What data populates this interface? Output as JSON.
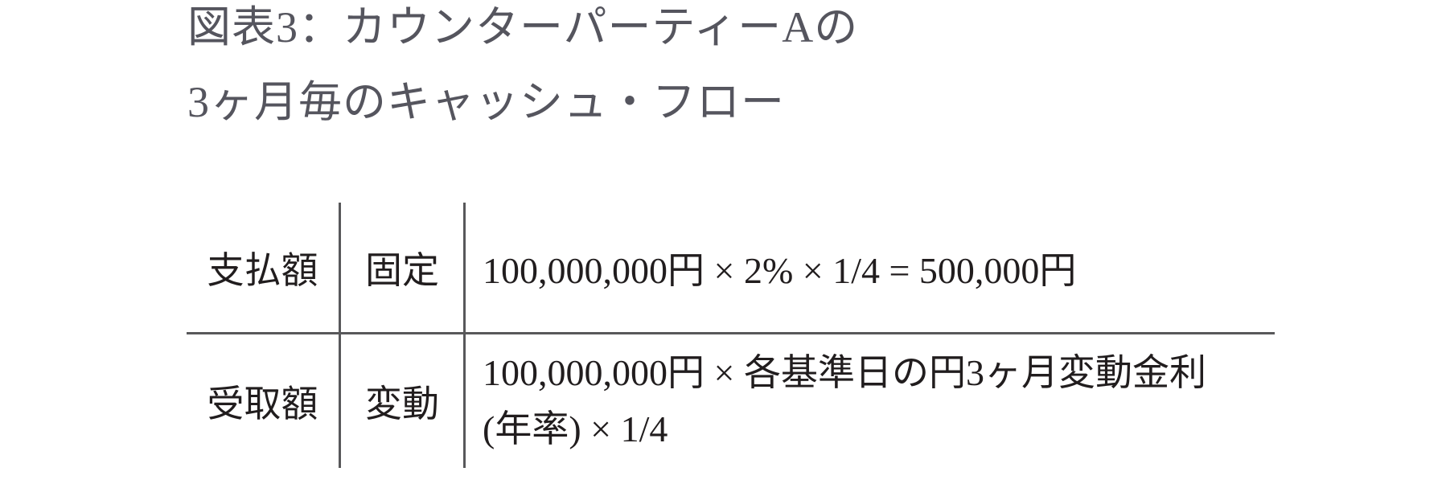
{
  "figure": {
    "title_line1": "図表3：カウンターパーティーAの",
    "title_line2": "3ヶ月毎のキャッシュ・フロー"
  },
  "table": {
    "rows": [
      {
        "label": "支払額",
        "leg_type": "固定",
        "formula_lines": [
          "100,000,000円 × 2% × 1/4 = 500,000円"
        ]
      },
      {
        "label": "受取額",
        "leg_type": "変動",
        "formula_lines": [
          "100,000,000円 × 各基準日の円3ヶ月変動金利",
          "(年率) × 1/4"
        ]
      }
    ]
  },
  "colors": {
    "background": "#ffffff",
    "title_text": "#55555e",
    "table_text": "#211d1e",
    "rule": "#58585a"
  }
}
